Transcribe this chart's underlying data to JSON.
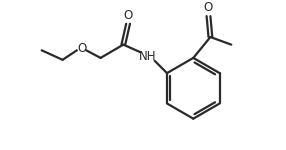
{
  "background_color": "#ffffff",
  "line_color": "#2a2a2a",
  "line_width": 1.6,
  "text_color": "#2a2a2a",
  "font_size": 8.5,
  "nh_label": "NH",
  "o_label": "O",
  "o2_label": "O",
  "o3_label": "O"
}
